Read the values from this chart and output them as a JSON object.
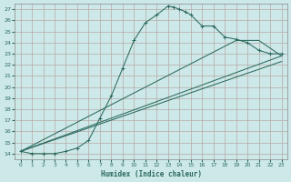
{
  "xlabel": "Humidex (Indice chaleur)",
  "bg_color": "#cce8e8",
  "grid_color": "#b8a8a8",
  "line_color": "#2d6b5e",
  "xlim": [
    -0.5,
    23.5
  ],
  "ylim": [
    13.5,
    27.5
  ],
  "xticks": [
    0,
    1,
    2,
    3,
    4,
    5,
    6,
    7,
    8,
    9,
    10,
    11,
    12,
    13,
    14,
    15,
    16,
    17,
    18,
    19,
    20,
    21,
    22,
    23
  ],
  "yticks": [
    14,
    15,
    16,
    17,
    18,
    19,
    20,
    21,
    22,
    23,
    24,
    25,
    26,
    27
  ],
  "line1_x": [
    0,
    1,
    2,
    3,
    4,
    5,
    6,
    7,
    8,
    9,
    10,
    11,
    12,
    13,
    13.5,
    14,
    14.5,
    15,
    16,
    17,
    18,
    19,
    20,
    21,
    22,
    23
  ],
  "line1_y": [
    14.2,
    14.0,
    14.0,
    14.0,
    14.2,
    14.5,
    15.2,
    17.2,
    19.2,
    21.7,
    24.2,
    25.8,
    26.5,
    27.3,
    27.2,
    27.0,
    26.8,
    26.5,
    25.5,
    25.5,
    24.5,
    24.3,
    24.0,
    23.3,
    23.0,
    23.0
  ],
  "line2_x": [
    0,
    23
  ],
  "line2_y": [
    14.2,
    22.8
  ],
  "line3_x": [
    0,
    23
  ],
  "line3_y": [
    14.2,
    22.3
  ],
  "line4_x": [
    0,
    19,
    21,
    23
  ],
  "line4_y": [
    14.2,
    24.2,
    24.2,
    22.8
  ]
}
